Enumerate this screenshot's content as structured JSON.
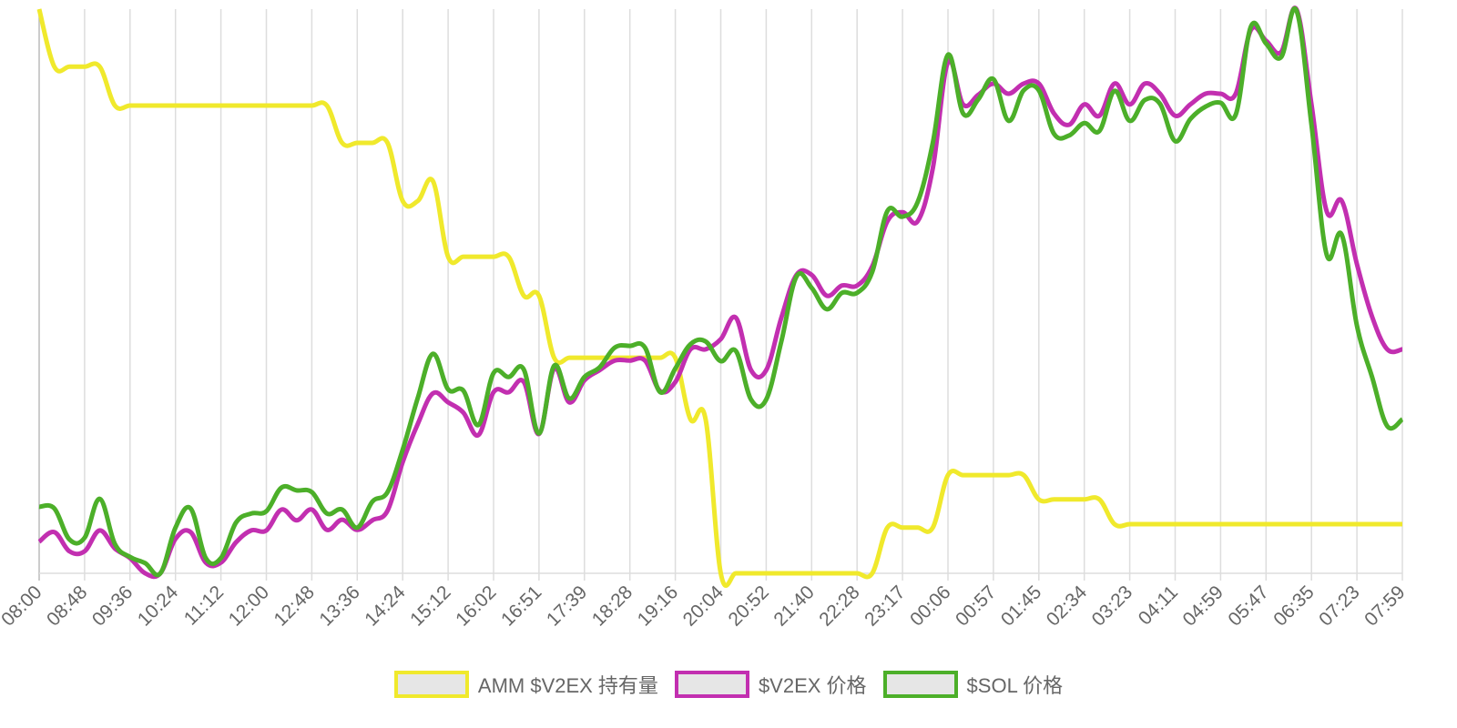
{
  "chart_data": {
    "type": "line",
    "categories": [
      "08:00",
      null,
      null,
      "08:48",
      null,
      null,
      "09:36",
      null,
      null,
      "10:24",
      null,
      null,
      "11:12",
      null,
      null,
      "12:00",
      null,
      null,
      "12:48",
      null,
      null,
      "13:36",
      null,
      null,
      "14:24",
      null,
      null,
      "15:12",
      null,
      null,
      "16:02",
      null,
      null,
      "16:51",
      null,
      null,
      "17:39",
      null,
      null,
      "18:28",
      null,
      null,
      "19:16",
      null,
      null,
      "20:04",
      null,
      null,
      "20:52",
      null,
      null,
      "21:40",
      null,
      null,
      "22:28",
      null,
      null,
      "23:17",
      null,
      null,
      "00:06",
      null,
      null,
      "00:57",
      null,
      null,
      "01:45",
      null,
      null,
      "02:34",
      null,
      null,
      "03:23",
      null,
      null,
      "04:11",
      null,
      null,
      "04:59",
      null,
      null,
      "05:47",
      null,
      null,
      "06:35",
      null,
      null,
      "07:23",
      null,
      null,
      "07:59"
    ],
    "ylim": [
      0,
      100
    ],
    "grid": true,
    "legend": "bottom",
    "series": [
      {
        "name": "AMM $V2EX 持有量",
        "color": "#f0e92c",
        "values": [
          100,
          89.8,
          89.8,
          89.8,
          89.8,
          82.9,
          82.9,
          82.9,
          82.9,
          82.9,
          82.9,
          82.9,
          82.9,
          82.9,
          82.9,
          82.9,
          82.9,
          82.9,
          82.9,
          82.9,
          76.3,
          76.3,
          76.3,
          76.3,
          66.0,
          66.0,
          69.5,
          56.1,
          56.1,
          56.1,
          56.1,
          56.1,
          49.2,
          49.2,
          38.2,
          38.2,
          38.2,
          38.2,
          38.2,
          38.2,
          38.2,
          38.2,
          38.2,
          27.3,
          27.3,
          0,
          0,
          0,
          0,
          0,
          0,
          0,
          0,
          0,
          0,
          0,
          8.1,
          8.1,
          8.1,
          8.1,
          17.4,
          17.4,
          17.4,
          17.4,
          17.4,
          17.4,
          13.1,
          13.1,
          13.1,
          13.1,
          13.1,
          8.7,
          8.7,
          8.7,
          8.7,
          8.7,
          8.7,
          8.7,
          8.7,
          8.7,
          8.7,
          8.7,
          8.7,
          8.7,
          8.7,
          8.7,
          8.7,
          8.7,
          8.7,
          8.7,
          8.7
        ]
      },
      {
        "name": "$V2EX 价格",
        "color": "#c22fb0",
        "values": [
          5.6,
          7.3,
          3.9,
          3.9,
          7.6,
          4.4,
          2.7,
          0,
          0,
          6.1,
          7.3,
          1.9,
          1.9,
          5.5,
          7.6,
          7.6,
          11.3,
          9.4,
          11.3,
          7.7,
          9.5,
          7.7,
          9.4,
          11.1,
          19.7,
          26.5,
          31.9,
          30.3,
          28.5,
          24.5,
          32.1,
          32.1,
          33.9,
          24.7,
          36.3,
          30.3,
          34.2,
          36.0,
          37.7,
          37.7,
          37.7,
          32.3,
          33.9,
          39.7,
          39.7,
          41.5,
          45.3,
          36.0,
          36.0,
          45.3,
          52.9,
          52.9,
          49.2,
          51.0,
          51.0,
          54.4,
          62.4,
          64.0,
          62.4,
          71.8,
          90.6,
          83.1,
          84.8,
          86.8,
          85.0,
          86.8,
          86.8,
          81.5,
          79.5,
          83.1,
          81.1,
          86.8,
          83.1,
          86.8,
          85.0,
          81.1,
          83.1,
          85.0,
          85.0,
          85.0,
          96.3,
          94.4,
          92.4,
          100,
          83.1,
          64.2,
          66.0,
          54.8,
          45.5,
          39.7,
          39.7
        ]
      },
      {
        "name": "$SOL 价格",
        "color": "#4caf29",
        "values": [
          11.8,
          11.5,
          6.0,
          6.3,
          13.2,
          5.2,
          2.9,
          1.8,
          0,
          8.1,
          11.5,
          2.7,
          2.7,
          9.0,
          10.6,
          11.0,
          15.2,
          14.7,
          14.4,
          10.6,
          11.3,
          8.1,
          12.7,
          14.4,
          21.9,
          31.1,
          38.9,
          32.6,
          32.4,
          26.3,
          35.5,
          34.8,
          36.1,
          24.8,
          36.8,
          31.0,
          34.8,
          36.5,
          40.0,
          40.3,
          40.0,
          32.1,
          36.3,
          40.6,
          41.1,
          37.6,
          39.4,
          30.8,
          30.8,
          41.1,
          52.6,
          50.6,
          46.8,
          49.7,
          49.7,
          53.4,
          64.2,
          63.2,
          65.8,
          76.3,
          91.9,
          81.5,
          84.0,
          87.6,
          80.2,
          85.6,
          85.6,
          77.9,
          77.6,
          79.8,
          78.4,
          85.5,
          80.2,
          83.9,
          83.2,
          76.6,
          80.5,
          82.7,
          83.4,
          81.3,
          96.9,
          93.9,
          91.5,
          99.8,
          79.5,
          56.5,
          60.0,
          43.9,
          34.8,
          26.1,
          27.3
        ]
      }
    ]
  }
}
